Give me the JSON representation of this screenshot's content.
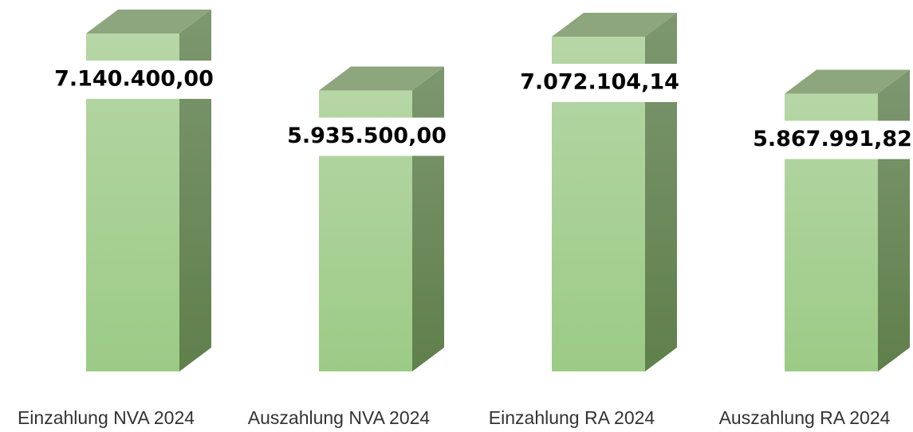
{
  "chart_data": {
    "type": "bar3d",
    "categories": [
      "Einzahlung NVA 2024",
      "Auszahlung NVA 2024",
      "Einzahlung RA 2024",
      "Auszahlung RA 2024"
    ],
    "values": [
      7140400.0,
      5935500.0,
      7072104.14,
      5867991.82
    ],
    "value_labels": [
      "7.140.400,00",
      "5.935.500,00",
      "7.072.104,14",
      "5.867.991,82"
    ],
    "color": "#a8d293"
  }
}
